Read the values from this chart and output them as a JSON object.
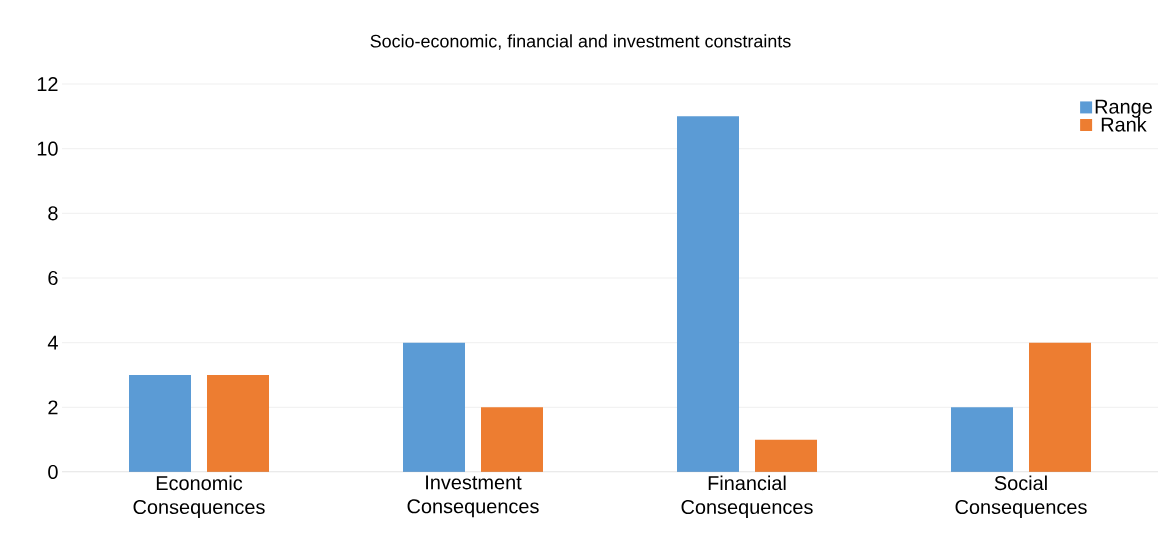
{
  "chart_data": {
    "type": "bar",
    "title": "Socio-economic, financial and investment constraints",
    "categories": [
      "Economic Consequences",
      "Investment Consequences",
      "Financial Consequences",
      "Social Consequences"
    ],
    "series": [
      {
        "name": "Range",
        "color": "#5b9bd5",
        "values": [
          3,
          4,
          11,
          2
        ]
      },
      {
        "name": "Rank",
        "color": "#ed7d31",
        "values": [
          3,
          2,
          1,
          4
        ]
      }
    ],
    "ylim": [
      0,
      12
    ],
    "yticks": [
      0,
      2,
      4,
      6,
      8,
      10,
      12
    ],
    "grid": "y",
    "legend": "top right"
  }
}
